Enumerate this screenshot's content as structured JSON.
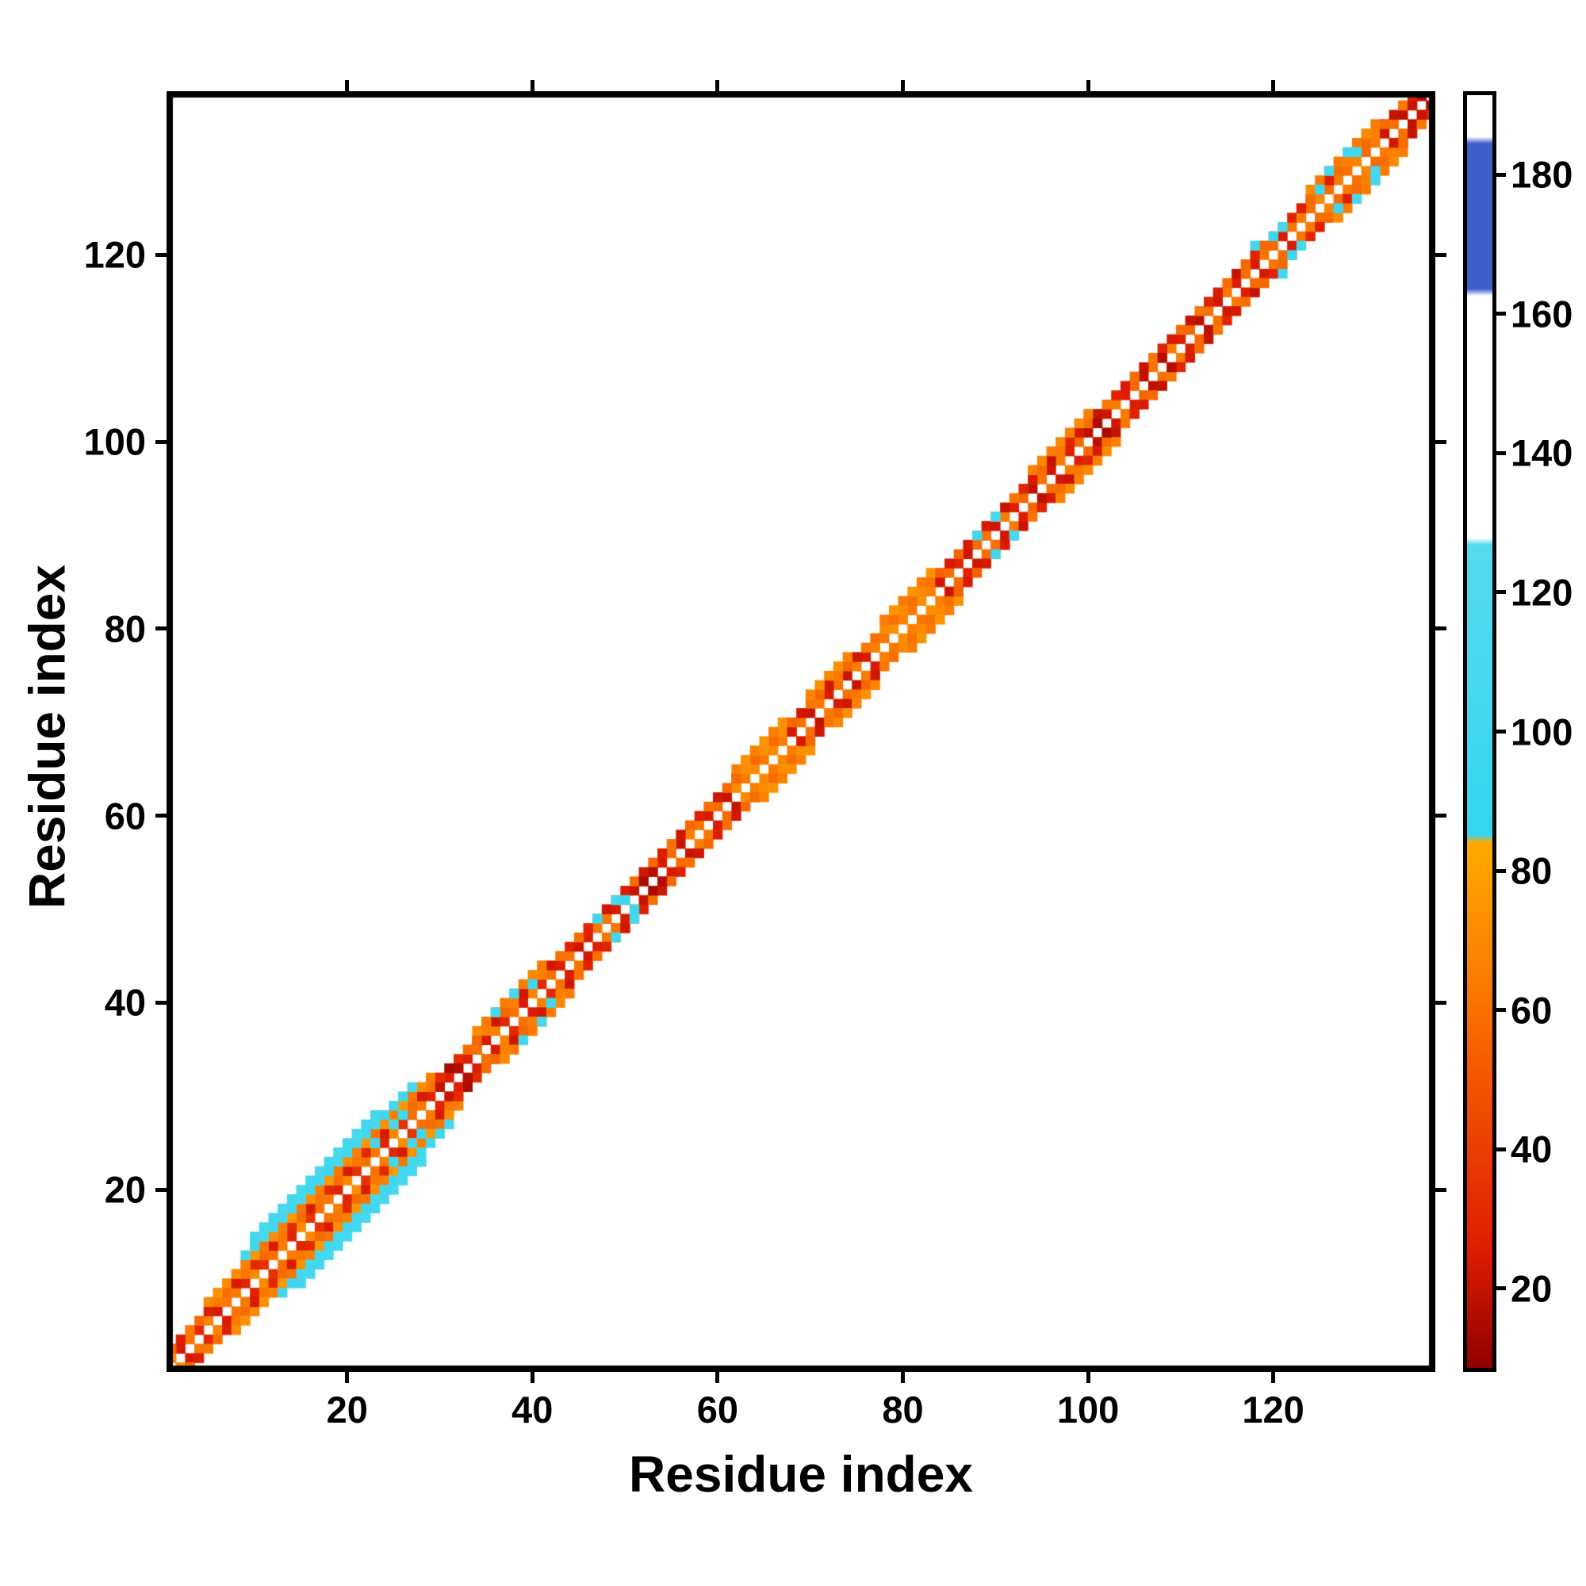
{
  "figure": {
    "background": "#ffffff",
    "frame_color": "#000000"
  },
  "chart_data": {
    "type": "heatmap",
    "title": "",
    "xlabel": "Residue index",
    "ylabel": "Residue index",
    "x_range": [
      1,
      137
    ],
    "y_range": [
      1,
      137
    ],
    "x_ticks": [
      20,
      40,
      60,
      80,
      100,
      120
    ],
    "y_ticks": [
      20,
      40,
      60,
      80,
      100,
      120
    ],
    "grid": false,
    "legend": "colorbar-right",
    "symmetric": true,
    "diagonal_masked": true,
    "background_value_color": "#ffffff",
    "colorbar": {
      "range": [
        8,
        192
      ],
      "ticks": [
        20,
        40,
        60,
        80,
        100,
        120,
        140,
        160,
        180
      ],
      "stops": [
        {
          "v": 8,
          "color": "#8f0000"
        },
        {
          "v": 25,
          "color": "#dd1c00"
        },
        {
          "v": 45,
          "color": "#f04a00"
        },
        {
          "v": 65,
          "color": "#fb7e00"
        },
        {
          "v": 84,
          "color": "#ffaa00"
        },
        {
          "v": 85,
          "color": "#35d6ef"
        },
        {
          "v": 127,
          "color": "#55d9ee"
        },
        {
          "v": 128,
          "color": "#ffffff"
        },
        {
          "v": 163,
          "color": "#ffffff"
        },
        {
          "v": 164,
          "color": "#3d5fca"
        },
        {
          "v": 185,
          "color": "#3d5fca"
        },
        {
          "v": 186,
          "color": "#ffffff"
        },
        {
          "v": 192,
          "color": "#ffffff"
        }
      ]
    },
    "band_segments": [
      {
        "i_start": 1,
        "i_end": 8,
        "d": 1,
        "values": [
          68,
          24,
          62,
          30
        ]
      },
      {
        "i_start": 1,
        "i_end": 8,
        "d": 2,
        "values": [
          58,
          26,
          64
        ]
      },
      {
        "i_start": 5,
        "i_end": 9,
        "d": 3,
        "values": [
          70,
          74
        ]
      },
      {
        "i_start": 8,
        "i_end": 30,
        "d": 1,
        "values": [
          64,
          28,
          70,
          34,
          60
        ]
      },
      {
        "i_start": 8,
        "i_end": 30,
        "d": 2,
        "values": [
          24,
          62,
          30,
          58
        ]
      },
      {
        "i_start": 8,
        "i_end": 29,
        "d": 3,
        "values": [
          72,
          66,
          76,
          62
        ]
      },
      {
        "i_start": 9,
        "i_end": 27,
        "d": 4,
        "values": [
          104,
          98,
          110,
          102
        ]
      },
      {
        "i_start": 10,
        "i_end": 23,
        "d": 5,
        "values": [
          100,
          108
        ]
      },
      {
        "i_start": 30,
        "i_end": 34,
        "d": 1,
        "values": [
          20,
          26
        ]
      },
      {
        "i_start": 30,
        "i_end": 34,
        "d": 2,
        "values": [
          32,
          58
        ]
      },
      {
        "i_start": 34,
        "i_end": 43,
        "d": 1,
        "values": [
          60,
          24,
          66,
          30
        ]
      },
      {
        "i_start": 34,
        "i_end": 43,
        "d": 2,
        "values": [
          56,
          66,
          22
        ]
      },
      {
        "i_start": 34,
        "i_end": 41,
        "d": 3,
        "values": [
          70,
          64
        ]
      },
      {
        "i_start": 43,
        "i_end": 48,
        "d": 1,
        "values": [
          26,
          62,
          22
        ]
      },
      {
        "i_start": 43,
        "i_end": 48,
        "d": 2,
        "values": [
          60,
          28
        ]
      },
      {
        "i_start": 48,
        "i_end": 62,
        "d": 1,
        "values": [
          62,
          24,
          58,
          20,
          66
        ]
      },
      {
        "i_start": 48,
        "i_end": 62,
        "d": 2,
        "values": [
          22,
          56,
          26,
          60
        ]
      },
      {
        "i_start": 62,
        "i_end": 68,
        "d": 1,
        "values": [
          70,
          64
        ]
      },
      {
        "i_start": 62,
        "i_end": 68,
        "d": 2,
        "values": [
          58,
          72
        ]
      },
      {
        "i_start": 62,
        "i_end": 67,
        "d": 3,
        "values": [
          66,
          74
        ]
      },
      {
        "i_start": 68,
        "i_end": 77,
        "d": 1,
        "values": [
          24,
          60,
          20,
          64
        ]
      },
      {
        "i_start": 68,
        "i_end": 77,
        "d": 2,
        "values": [
          56,
          22,
          62
        ]
      },
      {
        "i_start": 70,
        "i_end": 74,
        "d": 3,
        "values": [
          68,
          72
        ]
      },
      {
        "i_start": 77,
        "i_end": 84,
        "d": 1,
        "values": [
          66,
          62,
          72
        ]
      },
      {
        "i_start": 77,
        "i_end": 84,
        "d": 2,
        "values": [
          60,
          70
        ]
      },
      {
        "i_start": 78,
        "i_end": 83,
        "d": 3,
        "values": [
          64,
          74
        ]
      },
      {
        "i_start": 84,
        "i_end": 89,
        "d": 1,
        "values": [
          22,
          58,
          28
        ]
      },
      {
        "i_start": 84,
        "i_end": 89,
        "d": 2,
        "values": [
          54,
          24
        ]
      },
      {
        "i_start": 89,
        "i_end": 117,
        "d": 1,
        "values": [
          60,
          22,
          64,
          26,
          56,
          18
        ]
      },
      {
        "i_start": 89,
        "i_end": 117,
        "d": 2,
        "values": [
          24,
          58,
          20,
          62,
          28
        ]
      },
      {
        "i_start": 94,
        "i_end": 100,
        "d": 3,
        "values": [
          66,
          70
        ]
      },
      {
        "i_start": 117,
        "i_end": 124,
        "d": 1,
        "values": [
          58,
          24,
          62
        ]
      },
      {
        "i_start": 117,
        "i_end": 124,
        "d": 2,
        "values": [
          56,
          28
        ]
      },
      {
        "i_start": 123,
        "i_end": 132,
        "d": 1,
        "values": [
          64,
          60,
          68,
          58
        ]
      },
      {
        "i_start": 123,
        "i_end": 132,
        "d": 2,
        "values": [
          26,
          58,
          66
        ]
      },
      {
        "i_start": 124,
        "i_end": 131,
        "d": 3,
        "values": [
          70,
          64
        ]
      },
      {
        "i_start": 132,
        "i_end": 137,
        "d": 1,
        "values": [
          22,
          60,
          18,
          56
        ]
      },
      {
        "i_start": 132,
        "i_end": 136,
        "d": 2,
        "values": [
          58,
          20,
          62
        ]
      }
    ],
    "extra_cells": [
      [
        1,
        2,
        72
      ],
      [
        1,
        3,
        58
      ],
      [
        23,
        25,
        104
      ],
      [
        25,
        27,
        108
      ],
      [
        26,
        28,
        100
      ],
      [
        36,
        39,
        102
      ],
      [
        38,
        41,
        106
      ],
      [
        40,
        42,
        98
      ],
      [
        47,
        49,
        104
      ],
      [
        49,
        51,
        108
      ],
      [
        50,
        51,
        96
      ],
      [
        88,
        90,
        102
      ],
      [
        90,
        92,
        106
      ],
      [
        118,
        121,
        104
      ],
      [
        120,
        122,
        98
      ],
      [
        121,
        123,
        108
      ],
      [
        125,
        127,
        96
      ],
      [
        126,
        129,
        106
      ],
      [
        128,
        131,
        102
      ],
      [
        129,
        131,
        110
      ],
      [
        134,
        136,
        62
      ],
      [
        135,
        137,
        28
      ],
      [
        136,
        137,
        16
      ],
      [
        135,
        136,
        20
      ],
      [
        31,
        33,
        14
      ],
      [
        32,
        33,
        16
      ],
      [
        52,
        53,
        14
      ],
      [
        53,
        54,
        16
      ],
      [
        101,
        102,
        14
      ],
      [
        108,
        109,
        16
      ]
    ]
  }
}
